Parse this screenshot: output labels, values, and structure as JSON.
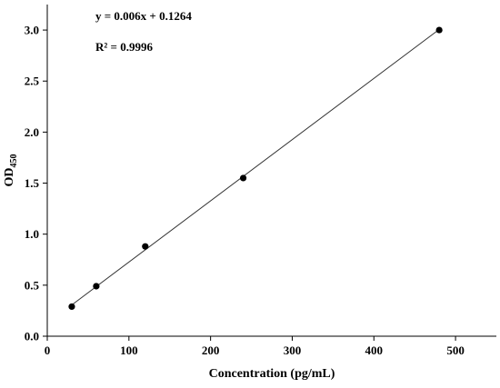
{
  "chart_data": {
    "type": "scatter",
    "title": "",
    "xlabel": "Concentration (pg/mL)",
    "ylabel_main": "OD",
    "ylabel_sub": "450",
    "xlim": [
      0,
      550
    ],
    "ylim": [
      0,
      3.25
    ],
    "xticks": [
      0,
      100,
      200,
      300,
      400,
      500
    ],
    "yticks": [
      "0.0",
      "0.5",
      "1.0",
      "1.5",
      "2.0",
      "2.5",
      "3.0"
    ],
    "grid": false,
    "series": [
      {
        "points": [
          {
            "x": 30,
            "y": 0.29
          },
          {
            "x": 60,
            "y": 0.49
          },
          {
            "x": 120,
            "y": 0.88
          },
          {
            "x": 240,
            "y": 1.55
          },
          {
            "x": 480,
            "y": 3.0
          }
        ]
      }
    ],
    "trendline": {
      "slope": 0.006,
      "intercept": 0.1264,
      "x_start": 30,
      "x_end": 480
    },
    "annotations": {
      "equation": "y = 0.006x + 0.1264",
      "r_squared": "R² = 0.9996"
    }
  }
}
